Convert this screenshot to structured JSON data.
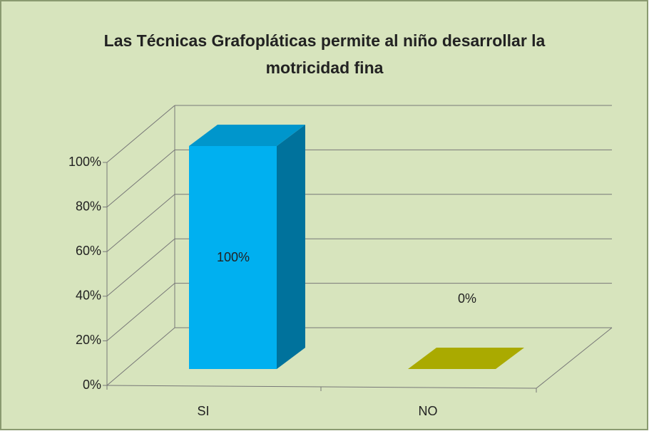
{
  "chart_data": {
    "type": "bar3d",
    "title": "Las Técnicas Grafopláticas permite al niño desarrollar la motricidad fina",
    "categories": [
      "SI",
      "NO"
    ],
    "values": [
      100,
      0
    ],
    "value_labels": [
      "100%",
      "0%"
    ],
    "colors": [
      "#00b0f0",
      "#c8c800"
    ],
    "ylim": [
      0,
      100
    ],
    "yticks": [
      {
        "value": 0,
        "label": "0%"
      },
      {
        "value": 20,
        "label": "20%"
      },
      {
        "value": 40,
        "label": "40%"
      },
      {
        "value": 60,
        "label": "60%"
      },
      {
        "value": 80,
        "label": "80%"
      },
      {
        "value": 100,
        "label": "100%"
      }
    ],
    "grid": true
  }
}
